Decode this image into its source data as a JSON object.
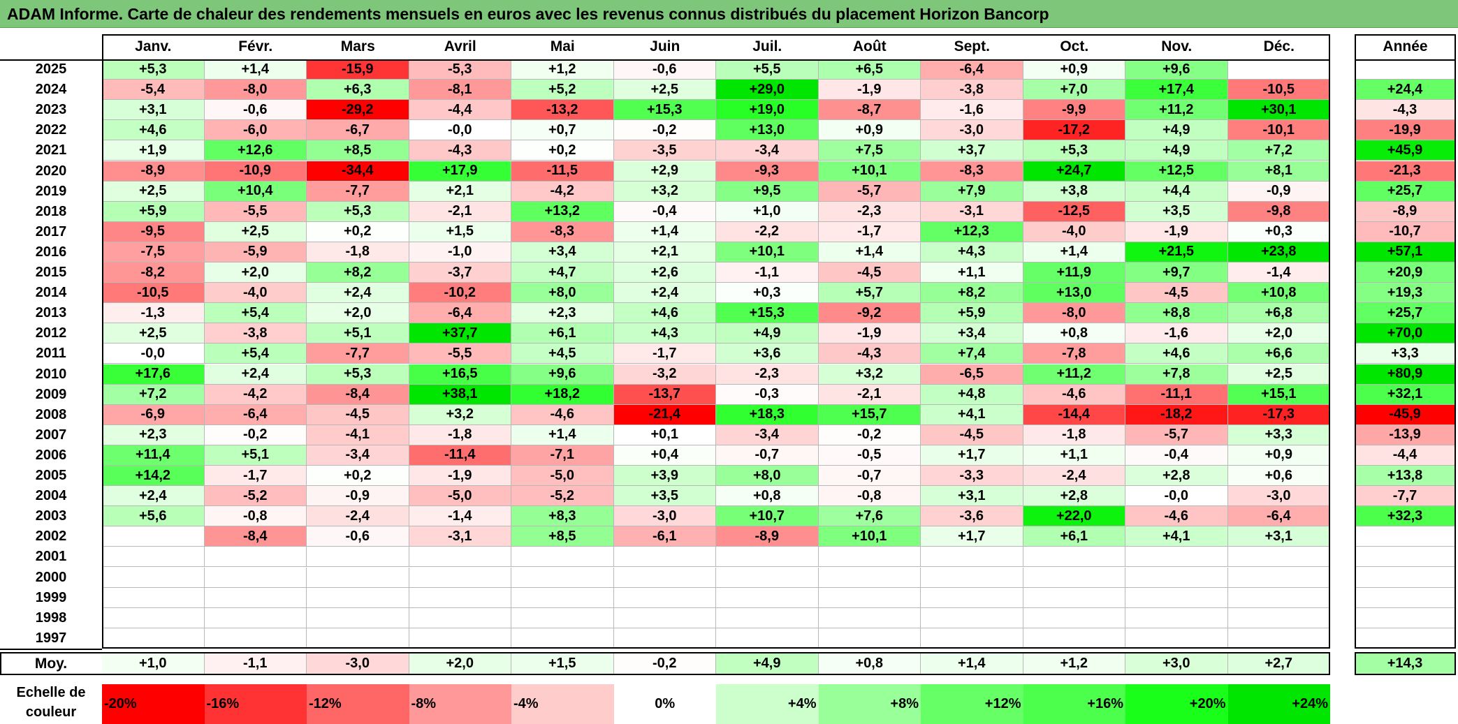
{
  "chart_data": {
    "type": "heatmap",
    "title": "ADAM Informe. Carte de chaleur des rendements mensuels en euros avec les revenus connus distribués du placement Horizon Bancorp",
    "months": [
      "Janv.",
      "Févr.",
      "Mars",
      "Avril",
      "Mai",
      "Juin",
      "Juil.",
      "Août",
      "Sept.",
      "Oct.",
      "Nov.",
      "Déc."
    ],
    "year_header": "Année",
    "rows": [
      {
        "year": "2025",
        "values": [
          "+5,3",
          "+1,4",
          "-15,9",
          "-5,3",
          "+1,2",
          "-0,6",
          "+5,5",
          "+6,5",
          "-6,4",
          "+0,9",
          "+9,6",
          ""
        ],
        "annual": ""
      },
      {
        "year": "2024",
        "values": [
          "-5,4",
          "-8,0",
          "+6,3",
          "-8,1",
          "+5,2",
          "+2,5",
          "+29,0",
          "-1,9",
          "-3,8",
          "+7,0",
          "+17,4",
          "-10,5"
        ],
        "annual": "+24,4"
      },
      {
        "year": "2023",
        "values": [
          "+3,1",
          "-0,6",
          "-29,2",
          "-4,4",
          "-13,2",
          "+15,3",
          "+19,0",
          "-8,7",
          "-1,6",
          "-9,9",
          "+11,2",
          "+30,1"
        ],
        "annual": "-4,3"
      },
      {
        "year": "2022",
        "values": [
          "+4,6",
          "-6,0",
          "-6,7",
          "-0,0",
          "+0,7",
          "-0,2",
          "+13,0",
          "+0,9",
          "-3,0",
          "-17,2",
          "+4,9",
          "-10,1"
        ],
        "annual": "-19,9"
      },
      {
        "year": "2021",
        "values": [
          "+1,9",
          "+12,6",
          "+8,5",
          "-4,3",
          "+0,2",
          "-3,5",
          "-3,4",
          "+7,5",
          "+3,7",
          "+5,3",
          "+4,9",
          "+7,2"
        ],
        "annual": "+45,9"
      },
      {
        "year": "2020",
        "values": [
          "-8,9",
          "-10,9",
          "-34,4",
          "+17,9",
          "-11,5",
          "+2,9",
          "-9,3",
          "+10,1",
          "-8,3",
          "+24,7",
          "+12,5",
          "+8,1"
        ],
        "annual": "-21,3"
      },
      {
        "year": "2019",
        "values": [
          "+2,5",
          "+10,4",
          "-7,7",
          "+2,1",
          "-4,2",
          "+3,2",
          "+9,5",
          "-5,7",
          "+7,9",
          "+3,8",
          "+4,4",
          "-0,9"
        ],
        "annual": "+25,7"
      },
      {
        "year": "2018",
        "values": [
          "+5,9",
          "-5,5",
          "+5,3",
          "-2,1",
          "+13,2",
          "-0,4",
          "+1,0",
          "-2,3",
          "-3,1",
          "-12,5",
          "+3,5",
          "-9,8"
        ],
        "annual": "-8,9"
      },
      {
        "year": "2017",
        "values": [
          "-9,5",
          "+2,5",
          "+0,2",
          "+1,5",
          "-8,3",
          "+1,4",
          "-2,2",
          "-1,7",
          "+12,3",
          "-4,0",
          "-1,9",
          "+0,3"
        ],
        "annual": "-10,7"
      },
      {
        "year": "2016",
        "values": [
          "-7,5",
          "-5,9",
          "-1,8",
          "-1,0",
          "+3,4",
          "+2,1",
          "+10,1",
          "+1,4",
          "+4,3",
          "+1,4",
          "+21,5",
          "+23,8"
        ],
        "annual": "+57,1"
      },
      {
        "year": "2015",
        "values": [
          "-8,2",
          "+2,0",
          "+8,2",
          "-3,7",
          "+4,7",
          "+2,6",
          "-1,1",
          "-4,5",
          "+1,1",
          "+11,9",
          "+9,7",
          "-1,4"
        ],
        "annual": "+20,9"
      },
      {
        "year": "2014",
        "values": [
          "-10,5",
          "-4,0",
          "+2,4",
          "-10,2",
          "+8,0",
          "+2,4",
          "+0,3",
          "+5,7",
          "+8,2",
          "+13,0",
          "-4,5",
          "+10,8"
        ],
        "annual": "+19,3"
      },
      {
        "year": "2013",
        "values": [
          "-1,3",
          "+5,4",
          "+2,0",
          "-6,4",
          "+2,3",
          "+4,6",
          "+15,3",
          "-9,2",
          "+5,9",
          "-8,0",
          "+8,8",
          "+6,8"
        ],
        "annual": "+25,7"
      },
      {
        "year": "2012",
        "values": [
          "+2,5",
          "-3,8",
          "+5,1",
          "+37,7",
          "+6,1",
          "+4,3",
          "+4,9",
          "-1,9",
          "+3,4",
          "+0,8",
          "-1,6",
          "+2,0"
        ],
        "annual": "+70,0"
      },
      {
        "year": "2011",
        "values": [
          "-0,0",
          "+5,4",
          "-7,7",
          "-5,5",
          "+4,5",
          "-1,7",
          "+3,6",
          "-4,3",
          "+7,4",
          "-7,8",
          "+4,6",
          "+6,6"
        ],
        "annual": "+3,3"
      },
      {
        "year": "2010",
        "values": [
          "+17,6",
          "+2,4",
          "+5,3",
          "+16,5",
          "+9,6",
          "-3,2",
          "-2,3",
          "+3,2",
          "-6,5",
          "+11,2",
          "+7,8",
          "+2,5"
        ],
        "annual": "+80,9"
      },
      {
        "year": "2009",
        "values": [
          "+7,2",
          "-4,2",
          "-8,4",
          "+38,1",
          "+18,2",
          "-13,7",
          "-0,3",
          "-2,1",
          "+4,8",
          "-4,6",
          "-11,1",
          "+15,1"
        ],
        "annual": "+32,1"
      },
      {
        "year": "2008",
        "values": [
          "-6,9",
          "-6,4",
          "-4,5",
          "+3,2",
          "-4,6",
          "-21,4",
          "+18,3",
          "+15,7",
          "+4,1",
          "-14,4",
          "-18,2",
          "-17,3"
        ],
        "annual": "-45,9"
      },
      {
        "year": "2007",
        "values": [
          "+2,3",
          "-0,2",
          "-4,1",
          "-1,8",
          "+1,4",
          "+0,1",
          "-3,4",
          "-0,2",
          "-4,5",
          "-1,8",
          "-5,7",
          "+3,3"
        ],
        "annual": "-13,9"
      },
      {
        "year": "2006",
        "values": [
          "+11,4",
          "+5,1",
          "-3,4",
          "-11,4",
          "-7,1",
          "+0,4",
          "-0,7",
          "-0,5",
          "+1,7",
          "+1,1",
          "-0,4",
          "+0,9"
        ],
        "annual": "-4,4"
      },
      {
        "year": "2005",
        "values": [
          "+14,2",
          "-1,7",
          "+0,2",
          "-1,9",
          "-5,0",
          "+3,9",
          "+8,0",
          "-0,7",
          "-3,3",
          "-2,4",
          "+2,8",
          "+0,6"
        ],
        "annual": "+13,8"
      },
      {
        "year": "2004",
        "values": [
          "+2,4",
          "-5,2",
          "-0,9",
          "-5,0",
          "-5,2",
          "+3,5",
          "+0,8",
          "-0,8",
          "+3,1",
          "+2,8",
          "-0,0",
          "-3,0"
        ],
        "annual": "-7,7"
      },
      {
        "year": "2003",
        "values": [
          "+5,6",
          "-0,8",
          "-2,4",
          "-1,4",
          "+8,3",
          "-3,0",
          "+10,7",
          "+7,6",
          "-3,6",
          "+22,0",
          "-4,6",
          "-6,4"
        ],
        "annual": "+32,3"
      },
      {
        "year": "2002",
        "values": [
          "",
          "-8,4",
          "-0,6",
          "-3,1",
          "+8,5",
          "-6,1",
          "-8,9",
          "+10,1",
          "+1,7",
          "+6,1",
          "+4,1",
          "+3,1"
        ],
        "annual": ""
      },
      {
        "year": "2001",
        "values": [
          "",
          "",
          "",
          "",
          "",
          "",
          "",
          "",
          "",
          "",
          "",
          ""
        ],
        "annual": ""
      },
      {
        "year": "2000",
        "values": [
          "",
          "",
          "",
          "",
          "",
          "",
          "",
          "",
          "",
          "",
          "",
          ""
        ],
        "annual": ""
      },
      {
        "year": "1999",
        "values": [
          "",
          "",
          "",
          "",
          "",
          "",
          "",
          "",
          "",
          "",
          "",
          ""
        ],
        "annual": ""
      },
      {
        "year": "1998",
        "values": [
          "",
          "",
          "",
          "",
          "",
          "",
          "",
          "",
          "",
          "",
          "",
          ""
        ],
        "annual": ""
      },
      {
        "year": "1997",
        "values": [
          "",
          "",
          "",
          "",
          "",
          "",
          "",
          "",
          "",
          "",
          "",
          ""
        ],
        "annual": ""
      }
    ],
    "average": {
      "label": "Moy.",
      "values": [
        "+1,0",
        "-1,1",
        "-3,0",
        "+2,0",
        "+1,5",
        "-0,2",
        "+4,9",
        "+0,8",
        "+1,4",
        "+1,2",
        "+3,0",
        "+2,7"
      ],
      "annual": "+14,3"
    },
    "scale": {
      "label": "Echelle de couleur",
      "steps": [
        {
          "text": "-20%",
          "value": -20,
          "color": "#ff0000"
        },
        {
          "text": "-16%",
          "value": -16,
          "color": "#ff3333"
        },
        {
          "text": "-12%",
          "value": -12,
          "color": "#ff6666"
        },
        {
          "text": "-8%",
          "value": -8,
          "color": "#ff9999"
        },
        {
          "text": "-4%",
          "value": -4,
          "color": "#ffcccc"
        },
        {
          "text": "0%",
          "value": 0,
          "color": "#ffffff"
        },
        {
          "text": "+4%",
          "value": 4,
          "color": "#ccffcc"
        },
        {
          "text": "+8%",
          "value": 8,
          "color": "#99ff99"
        },
        {
          "text": "+12%",
          "value": 12,
          "color": "#66ff66"
        },
        {
          "text": "+16%",
          "value": 16,
          "color": "#4dff4d"
        },
        {
          "text": "+20%",
          "value": 20,
          "color": "#1aff1a"
        },
        {
          "text": "+24%",
          "value": 24,
          "color": "#00e600"
        }
      ]
    }
  }
}
